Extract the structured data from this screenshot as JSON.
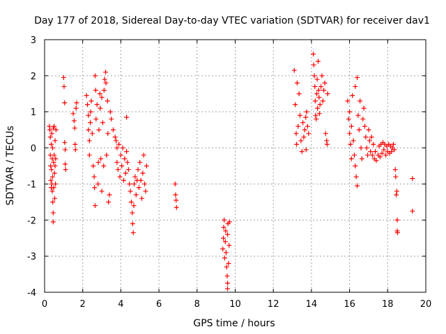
{
  "chart_data": {
    "type": "scatter",
    "title": "Day 177 of 2018, Sidereal Day-to-day VTEC variation (SDTVAR) for receiver dav1",
    "xlabel": "GPS time / hours",
    "ylabel": "SDTVAR / TECUs",
    "xlim": [
      0,
      20
    ],
    "ylim": [
      -4,
      3
    ],
    "xticks": [
      "0",
      "2",
      "4",
      "6",
      "8",
      "10",
      "12",
      "14",
      "16",
      "18",
      "20"
    ],
    "yticks": [
      "-4",
      "-3",
      "-2",
      "-1",
      "0",
      "1",
      "2",
      "3"
    ],
    "grid": true,
    "marker": "+",
    "color": "#ff0000",
    "series": [
      {
        "name": "SDTVAR",
        "points": [
          [
            0.25,
            0.6
          ],
          [
            0.28,
            0.5
          ],
          [
            0.3,
            0.3
          ],
          [
            0.3,
            -0.2
          ],
          [
            0.32,
            -0.5
          ],
          [
            0.33,
            -0.9
          ],
          [
            0.35,
            -1.1
          ],
          [
            0.35,
            0.1
          ],
          [
            0.36,
            -0.6
          ],
          [
            0.38,
            -1.0
          ],
          [
            0.38,
            0.4
          ],
          [
            0.4,
            -0.3
          ],
          [
            0.4,
            -1.2
          ],
          [
            0.42,
            0.0
          ],
          [
            0.42,
            -0.8
          ],
          [
            0.43,
            -1.5
          ],
          [
            0.45,
            -1.8
          ],
          [
            0.45,
            -2.05
          ],
          [
            0.46,
            0.55
          ],
          [
            0.47,
            -0.4
          ],
          [
            0.48,
            -1.1
          ],
          [
            0.5,
            -0.2
          ],
          [
            0.5,
            0.6
          ],
          [
            0.52,
            -0.7
          ],
          [
            0.53,
            -1.4
          ],
          [
            0.55,
            -0.5
          ],
          [
            0.55,
            0.2
          ],
          [
            0.57,
            -1.0
          ],
          [
            0.58,
            -0.3
          ],
          [
            0.6,
            0.5
          ],
          [
            1.0,
            1.95
          ],
          [
            1.02,
            1.7
          ],
          [
            1.05,
            1.25
          ],
          [
            1.05,
            0.15
          ],
          [
            1.08,
            -0.05
          ],
          [
            1.08,
            -0.45
          ],
          [
            1.1,
            -0.6
          ],
          [
            1.5,
            0.95
          ],
          [
            1.55,
            0.75
          ],
          [
            1.58,
            0.55
          ],
          [
            1.6,
            0.1
          ],
          [
            1.62,
            -0.05
          ],
          [
            1.65,
            1.1
          ],
          [
            1.68,
            1.25
          ],
          [
            2.2,
            1.45
          ],
          [
            2.25,
            1.2
          ],
          [
            2.3,
            0.9
          ],
          [
            2.3,
            0.5
          ],
          [
            2.35,
            0.2
          ],
          [
            2.35,
            -0.2
          ],
          [
            2.4,
            0.7
          ],
          [
            2.42,
            1.0
          ],
          [
            2.45,
            1.3
          ],
          [
            2.5,
            0.4
          ],
          [
            2.55,
            -0.5
          ],
          [
            2.6,
            -0.8
          ],
          [
            2.62,
            -1.1
          ],
          [
            2.65,
            -1.6
          ],
          [
            2.65,
            2.0
          ],
          [
            2.68,
            1.6
          ],
          [
            2.7,
            0.8
          ],
          [
            2.75,
            1.2
          ],
          [
            2.8,
            -1.0
          ],
          [
            2.82,
            -0.4
          ],
          [
            2.85,
            0.5
          ],
          [
            2.9,
            1.5
          ],
          [
            2.92,
            1.1
          ],
          [
            2.95,
            -0.3
          ],
          [
            3.0,
            -1.2
          ],
          [
            3.0,
            1.4
          ],
          [
            3.05,
            0.7
          ],
          [
            3.1,
            -0.5
          ],
          [
            3.12,
            1.6
          ],
          [
            3.15,
            1.9
          ],
          [
            3.2,
            2.1
          ],
          [
            3.22,
            1.8
          ],
          [
            3.25,
            -0.2
          ],
          [
            3.3,
            1.3
          ],
          [
            3.32,
            0.4
          ],
          [
            3.35,
            -1.5
          ],
          [
            3.4,
            -1.3
          ],
          [
            3.45,
            1.0
          ],
          [
            3.5,
            0.8
          ],
          [
            3.6,
            0.5
          ],
          [
            3.7,
            0.3
          ],
          [
            3.75,
            0.2
          ],
          [
            3.8,
            0.0
          ],
          [
            3.8,
            -0.4
          ],
          [
            3.85,
            -0.6
          ],
          [
            3.9,
            0.1
          ],
          [
            3.95,
            -0.8
          ],
          [
            4.0,
            -0.2
          ],
          [
            4.05,
            -0.5
          ],
          [
            4.1,
            0.0
          ],
          [
            4.15,
            -0.9
          ],
          [
            4.2,
            -0.3
          ],
          [
            4.25,
            -0.7
          ],
          [
            4.3,
            0.85
          ],
          [
            4.3,
            -0.1
          ],
          [
            4.35,
            -0.4
          ],
          [
            4.4,
            -0.6
          ],
          [
            4.45,
            -1.0
          ],
          [
            4.5,
            -1.2
          ],
          [
            4.55,
            -1.5
          ],
          [
            4.6,
            -1.8
          ],
          [
            4.62,
            -2.1
          ],
          [
            4.65,
            -2.35
          ],
          [
            4.68,
            -1.6
          ],
          [
            4.7,
            -1.0
          ],
          [
            4.75,
            -0.8
          ],
          [
            4.8,
            -1.3
          ],
          [
            4.85,
            -0.9
          ],
          [
            4.9,
            -0.6
          ],
          [
            4.95,
            -1.1
          ],
          [
            5.0,
            -0.4
          ],
          [
            5.05,
            -0.9
          ],
          [
            5.1,
            -1.4
          ],
          [
            5.15,
            -0.7
          ],
          [
            5.2,
            -0.2
          ],
          [
            5.25,
            -1.0
          ],
          [
            5.3,
            -1.2
          ],
          [
            5.35,
            -0.5
          ],
          [
            6.85,
            -1.0
          ],
          [
            6.87,
            -1.3
          ],
          [
            6.9,
            -1.45
          ],
          [
            6.92,
            -1.65
          ],
          [
            9.35,
            -2.8
          ],
          [
            9.38,
            -2.5
          ],
          [
            9.4,
            -2.2
          ],
          [
            9.42,
            -2.0
          ],
          [
            9.45,
            -3.05
          ],
          [
            9.48,
            -2.6
          ],
          [
            9.5,
            -2.3
          ],
          [
            9.52,
            -2.9
          ],
          [
            9.55,
            -3.3
          ],
          [
            9.58,
            -3.55
          ],
          [
            9.6,
            -3.75
          ],
          [
            9.6,
            -2.4
          ],
          [
            9.62,
            -2.1
          ],
          [
            9.65,
            -3.2
          ],
          [
            9.68,
            -2.7
          ],
          [
            9.7,
            -2.05
          ],
          [
            9.6,
            -3.9
          ],
          [
            13.1,
            2.15
          ],
          [
            13.15,
            1.2
          ],
          [
            13.2,
            0.4
          ],
          [
            13.22,
            0.1
          ],
          [
            13.25,
            1.8
          ],
          [
            13.3,
            0.6
          ],
          [
            13.35,
            1.5
          ],
          [
            13.4,
            0.9
          ],
          [
            13.45,
            0.2
          ],
          [
            13.5,
            -0.1
          ],
          [
            13.55,
            0.7
          ],
          [
            13.6,
            0.3
          ],
          [
            13.65,
            0.5
          ],
          [
            13.7,
            0.85
          ],
          [
            13.72,
            -0.05
          ],
          [
            13.75,
            1.0
          ],
          [
            13.8,
            0.6
          ],
          [
            13.85,
            0.4
          ],
          [
            14.1,
            2.6
          ],
          [
            14.12,
            2.3
          ],
          [
            14.15,
            2.0
          ],
          [
            14.18,
            1.7
          ],
          [
            14.2,
            1.3
          ],
          [
            14.22,
            0.9
          ],
          [
            14.25,
            0.8
          ],
          [
            14.28,
            1.5
          ],
          [
            14.3,
            1.9
          ],
          [
            14.32,
            1.1
          ],
          [
            14.35,
            2.4
          ],
          [
            14.38,
            1.6
          ],
          [
            14.4,
            1.4
          ],
          [
            14.42,
            0.95
          ],
          [
            14.45,
            1.2
          ],
          [
            14.5,
            1.7
          ],
          [
            14.55,
            2.0
          ],
          [
            14.6,
            1.3
          ],
          [
            14.65,
            1.6
          ],
          [
            14.7,
            1.8
          ],
          [
            14.75,
            0.4
          ],
          [
            14.8,
            0.2
          ],
          [
            14.82,
            0.1
          ],
          [
            14.85,
            1.5
          ],
          [
            15.9,
            1.3
          ],
          [
            15.95,
            0.8
          ],
          [
            16.0,
            0.4
          ],
          [
            16.0,
            1.0
          ],
          [
            16.05,
            0.1
          ],
          [
            16.1,
            -0.3
          ],
          [
            16.1,
            0.6
          ],
          [
            16.15,
            1.45
          ],
          [
            16.2,
            0.2
          ],
          [
            16.25,
            -0.2
          ],
          [
            16.3,
            -0.5
          ],
          [
            16.3,
            1.7
          ],
          [
            16.35,
            -0.8
          ],
          [
            16.4,
            -1.05
          ],
          [
            16.4,
            1.95
          ],
          [
            16.45,
            0.9
          ],
          [
            16.5,
            0.5
          ],
          [
            16.55,
            1.3
          ],
          [
            16.6,
            0.0
          ],
          [
            16.65,
            -0.3
          ],
          [
            16.7,
            0.8
          ],
          [
            16.75,
            1.1
          ],
          [
            16.8,
            0.6
          ],
          [
            16.85,
            0.3
          ],
          [
            16.9,
            0.0
          ],
          [
            16.95,
            -0.2
          ],
          [
            17.0,
            0.5
          ],
          [
            17.05,
            0.2
          ],
          [
            17.1,
            -0.1
          ],
          [
            17.15,
            0.3
          ],
          [
            17.2,
            -0.2
          ],
          [
            17.25,
            0.1
          ],
          [
            17.3,
            -0.3
          ],
          [
            17.35,
            -0.1
          ],
          [
            17.4,
            -0.35
          ],
          [
            17.5,
            -0.2
          ],
          [
            17.55,
            0.05
          ],
          [
            17.6,
            -0.25
          ],
          [
            17.65,
            0.1
          ],
          [
            17.7,
            -0.15
          ],
          [
            17.75,
            0.15
          ],
          [
            17.8,
            -0.05
          ],
          [
            17.85,
            0.1
          ],
          [
            17.9,
            -0.2
          ],
          [
            17.95,
            0.05
          ],
          [
            18.0,
            -0.1
          ],
          [
            18.05,
            0.1
          ],
          [
            18.1,
            -0.15
          ],
          [
            18.15,
            0.05
          ],
          [
            18.2,
            -0.1
          ],
          [
            18.25,
            0.0
          ],
          [
            18.3,
            0.1
          ],
          [
            18.35,
            -0.05
          ],
          [
            18.4,
            -0.6
          ],
          [
            18.42,
            -0.8
          ],
          [
            18.45,
            -1.3
          ],
          [
            18.48,
            -1.2
          ],
          [
            18.5,
            -2.0
          ],
          [
            18.5,
            -2.3
          ],
          [
            18.52,
            -2.35
          ],
          [
            19.3,
            -0.85
          ],
          [
            19.3,
            -1.75
          ]
        ]
      }
    ]
  }
}
